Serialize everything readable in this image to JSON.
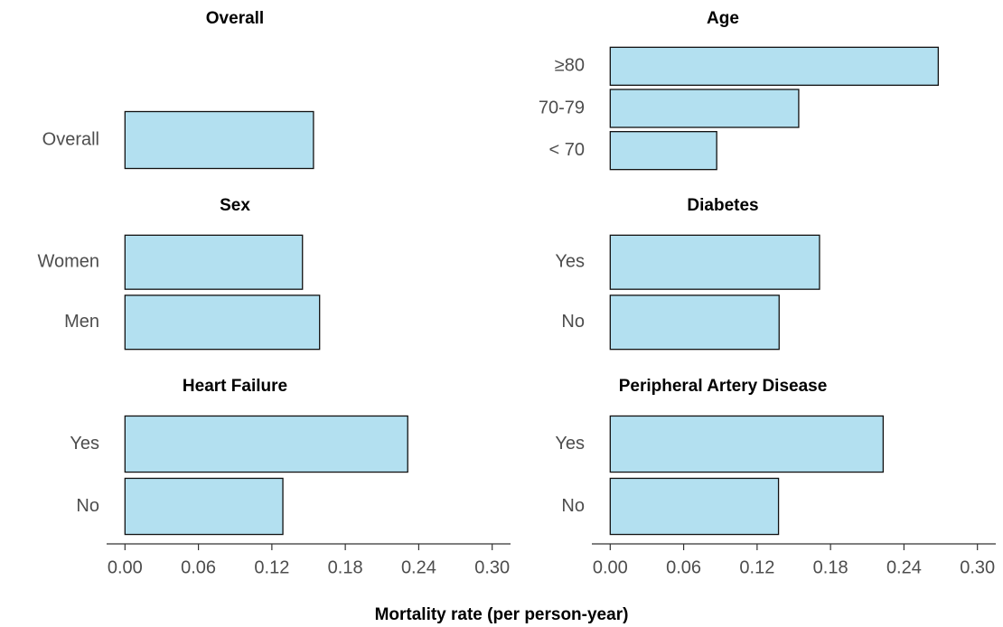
{
  "chart_data": [
    {
      "type": "bar",
      "title": "Overall",
      "categories": [
        "Overall"
      ],
      "values": [
        0.154
      ],
      "color": "#b3e0f0",
      "xlim": [
        -0.015,
        0.315
      ]
    },
    {
      "type": "bar",
      "title": "Age",
      "categories": [
        "≥80",
        "70-79",
        "< 70"
      ],
      "values": [
        0.268,
        0.154,
        0.087
      ],
      "color": "#b3e0f0",
      "xlim": [
        -0.015,
        0.315
      ]
    },
    {
      "type": "bar",
      "title": "Sex",
      "categories": [
        "Women",
        "Men"
      ],
      "values": [
        0.145,
        0.159
      ],
      "color": "#b3e0f0",
      "xlim": [
        -0.015,
        0.315
      ]
    },
    {
      "type": "bar",
      "title": "Diabetes",
      "categories": [
        "Yes",
        "No"
      ],
      "values": [
        0.171,
        0.138
      ],
      "color": "#b3e0f0",
      "xlim": [
        -0.015,
        0.315
      ]
    },
    {
      "type": "bar",
      "title": "Heart Failure",
      "categories": [
        "Yes",
        "No"
      ],
      "values": [
        0.231,
        0.129
      ],
      "color": "#b3e0f0",
      "xlim": [
        -0.015,
        0.315
      ],
      "xticks": [
        {
          "value": 0,
          "label": "0.00"
        },
        0.06,
        0.12,
        0.18,
        0.24,
        {
          "value": 0.3,
          "label": "0.30"
        }
      ]
    },
    {
      "type": "bar",
      "title": "Peripheral Artery Disease",
      "categories": [
        "Yes",
        "No"
      ],
      "values": [
        0.223,
        0.1375
      ],
      "color": "#b3e0f0",
      "xlim": [
        -0.015,
        0.315
      ],
      "xticks": [
        {
          "value": 0,
          "label": "0.00"
        },
        0.06,
        0.12,
        0.18,
        0.24,
        {
          "value": 0.3,
          "label": "0.30"
        }
      ]
    }
  ],
  "x_label": "Mortality rate (per person-year)"
}
